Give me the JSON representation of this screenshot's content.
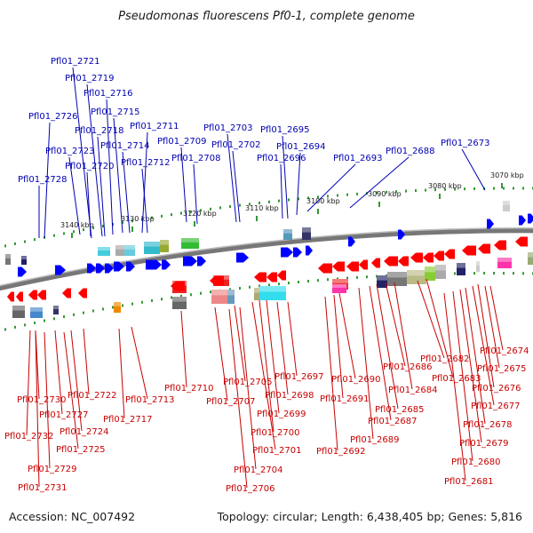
{
  "title": "Pseudomonas fluorescens Pf0-1, complete genome",
  "footer": {
    "accession": "Accession: NC_007492",
    "stats": "Topology: circular; Length: 6,438,405 bp; Genes: 5,816"
  },
  "scale_ticks": [
    {
      "label": "3140 kbp"
    },
    {
      "label": "3130 kbp"
    },
    {
      "label": "3120 kbp"
    },
    {
      "label": "3110 kbp"
    },
    {
      "label": "3100 kbp"
    },
    {
      "label": "3090 kbp"
    },
    {
      "label": "3080 kbp"
    },
    {
      "label": "3070 kbp"
    }
  ],
  "top_labels": [
    "Pfl01_2721",
    "Pfl01_2719",
    "Pfl01_2716",
    "Pfl01_2715",
    "Pfl01_2726",
    "Pfl01_2718",
    "Pfl01_2711",
    "Pfl01_2703",
    "Pfl01_2695",
    "Pfl01_2714",
    "Pfl01_2709",
    "Pfl01_2702",
    "Pfl01_2694",
    "Pfl01_2673",
    "Pfl01_2723",
    "Pfl01_2688",
    "Pfl01_2708",
    "Pfl01_2696",
    "Pfl01_2693",
    "Pfl01_2712",
    "Pfl01_2720",
    "Pfl01_2728"
  ],
  "bottom_labels": [
    "Pfl01_2674",
    "Pfl01_2675",
    "Pfl01_2682",
    "Pfl01_2686",
    "Pfl01_2697",
    "Pfl01_2683",
    "Pfl01_2676",
    "Pfl01_2690",
    "Pfl01_2684",
    "Pfl01_2710",
    "Pfl01_2705",
    "Pfl01_2698",
    "Pfl01_2722",
    "Pfl01_2730",
    "Pfl01_2713",
    "Pfl01_2707",
    "Pfl01_2691",
    "Pfl01_2677",
    "Pfl01_2685",
    "Pfl01_2699",
    "Pfl01_2727",
    "Pfl01_2717",
    "Pfl01_2687",
    "Pfl01_2678",
    "Pfl01_2724",
    "Pfl01_2700",
    "Pfl01_2689",
    "Pfl01_2732",
    "Pfl01_2679",
    "Pfl01_2725",
    "Pfl01_2701",
    "Pfl01_2692",
    "Pfl01_2680",
    "Pfl01_2704",
    "Pfl01_2729",
    "Pfl01_2681",
    "Pfl01_2731",
    "Pfl01_2706"
  ],
  "colors": {
    "forward_gene": "#0000ff",
    "reverse_gene": "#ff0000",
    "top_label": "#0000b4",
    "bottom_label": "#c80000",
    "tick": "#339933",
    "backbone": "#888888"
  }
}
